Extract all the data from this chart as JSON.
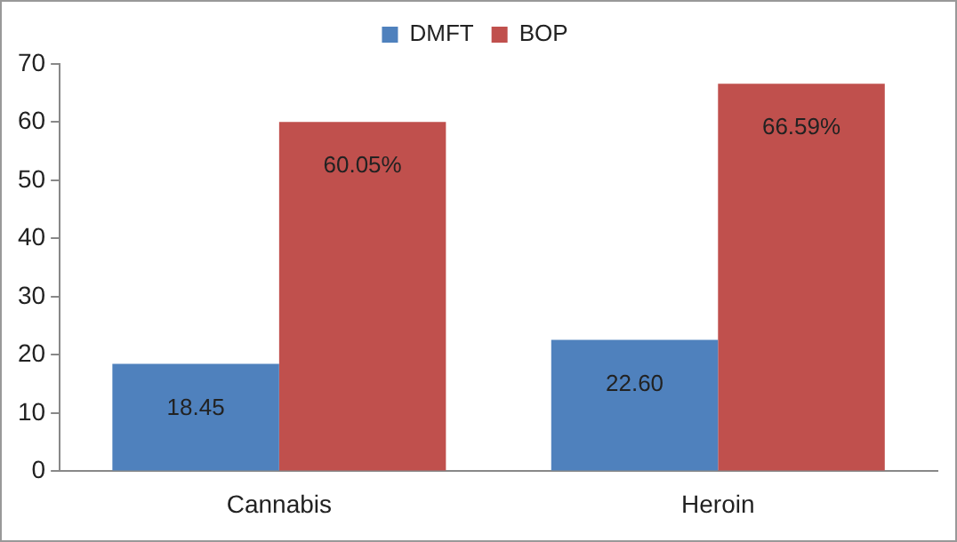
{
  "chart_data": {
    "type": "bar",
    "categories": [
      "Cannabis",
      "Heroin"
    ],
    "series": [
      {
        "name": "DMFT",
        "color": "#4f81bd",
        "values": [
          18.45,
          22.6
        ],
        "value_labels": [
          "18.45",
          "22.60"
        ]
      },
      {
        "name": "BOP",
        "color": "#c0504d",
        "values": [
          60.05,
          66.59
        ],
        "value_labels": [
          "60.05%",
          "66.59%"
        ]
      }
    ],
    "ylim": [
      0,
      70
    ],
    "yticks": [
      0,
      10,
      20,
      30,
      40,
      50,
      60,
      70
    ],
    "legend": "top"
  }
}
